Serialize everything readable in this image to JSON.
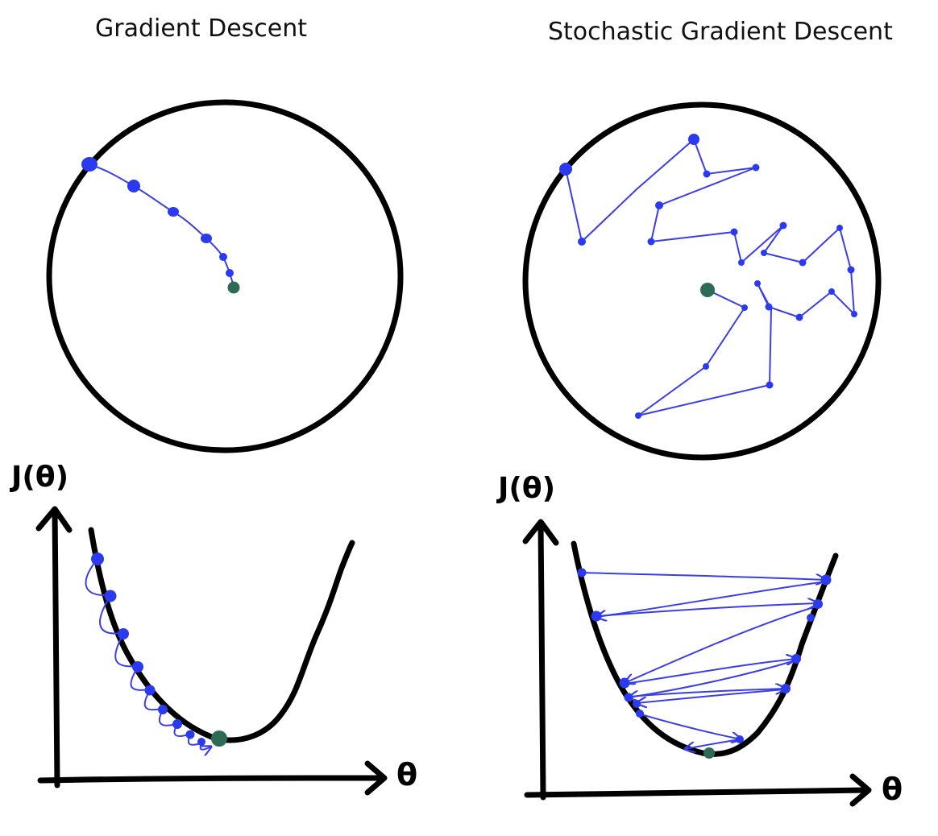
{
  "panels": {
    "left": {
      "title": "Gradient Descent",
      "ylabel": "J(θ)",
      "xlabel": "θ"
    },
    "right": {
      "title": "Stochastic Gradient Descent",
      "ylabel": "J(θ)",
      "xlabel": "θ"
    }
  },
  "colors": {
    "ink": "#000000",
    "path": "#3a3ee8",
    "step": "#2b3aef",
    "minimum": "#2e6b55"
  }
}
